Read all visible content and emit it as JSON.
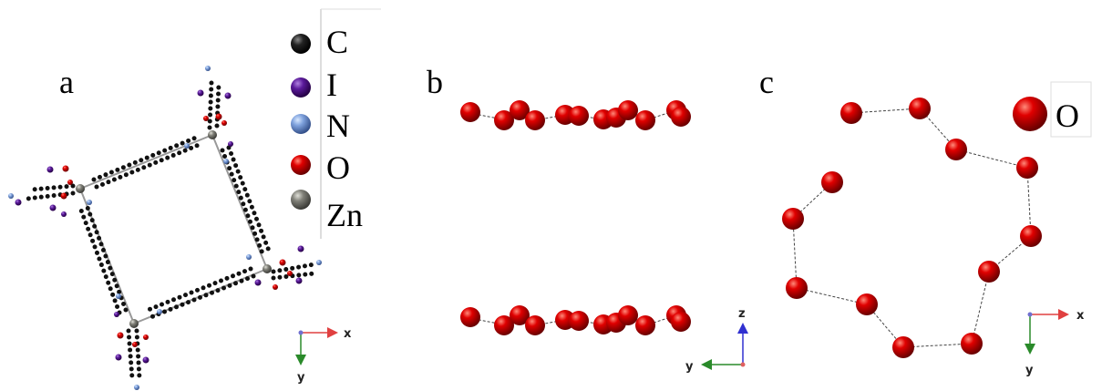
{
  "panels": [
    {
      "label": "a",
      "legend": [
        "C",
        "I",
        "N",
        "O",
        "Zn"
      ],
      "axes": [
        "x",
        "y"
      ]
    },
    {
      "label": "b",
      "axes": [
        "z",
        "y"
      ]
    },
    {
      "label": "c",
      "legend": [
        "O"
      ],
      "axes": [
        "x",
        "y"
      ]
    }
  ]
}
